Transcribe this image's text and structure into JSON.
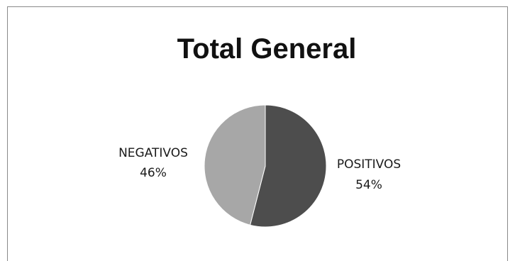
{
  "chart_data": {
    "type": "pie",
    "title": "Total General",
    "categories": [
      "POSITIVOS",
      "NEGATIVOS"
    ],
    "values": [
      54,
      46
    ],
    "value_labels": [
      "54%",
      "46%"
    ],
    "colors": [
      "#4d4d4d",
      "#a7a7a7"
    ],
    "legend": "none",
    "data_labels": "category and percent, outside slices"
  }
}
